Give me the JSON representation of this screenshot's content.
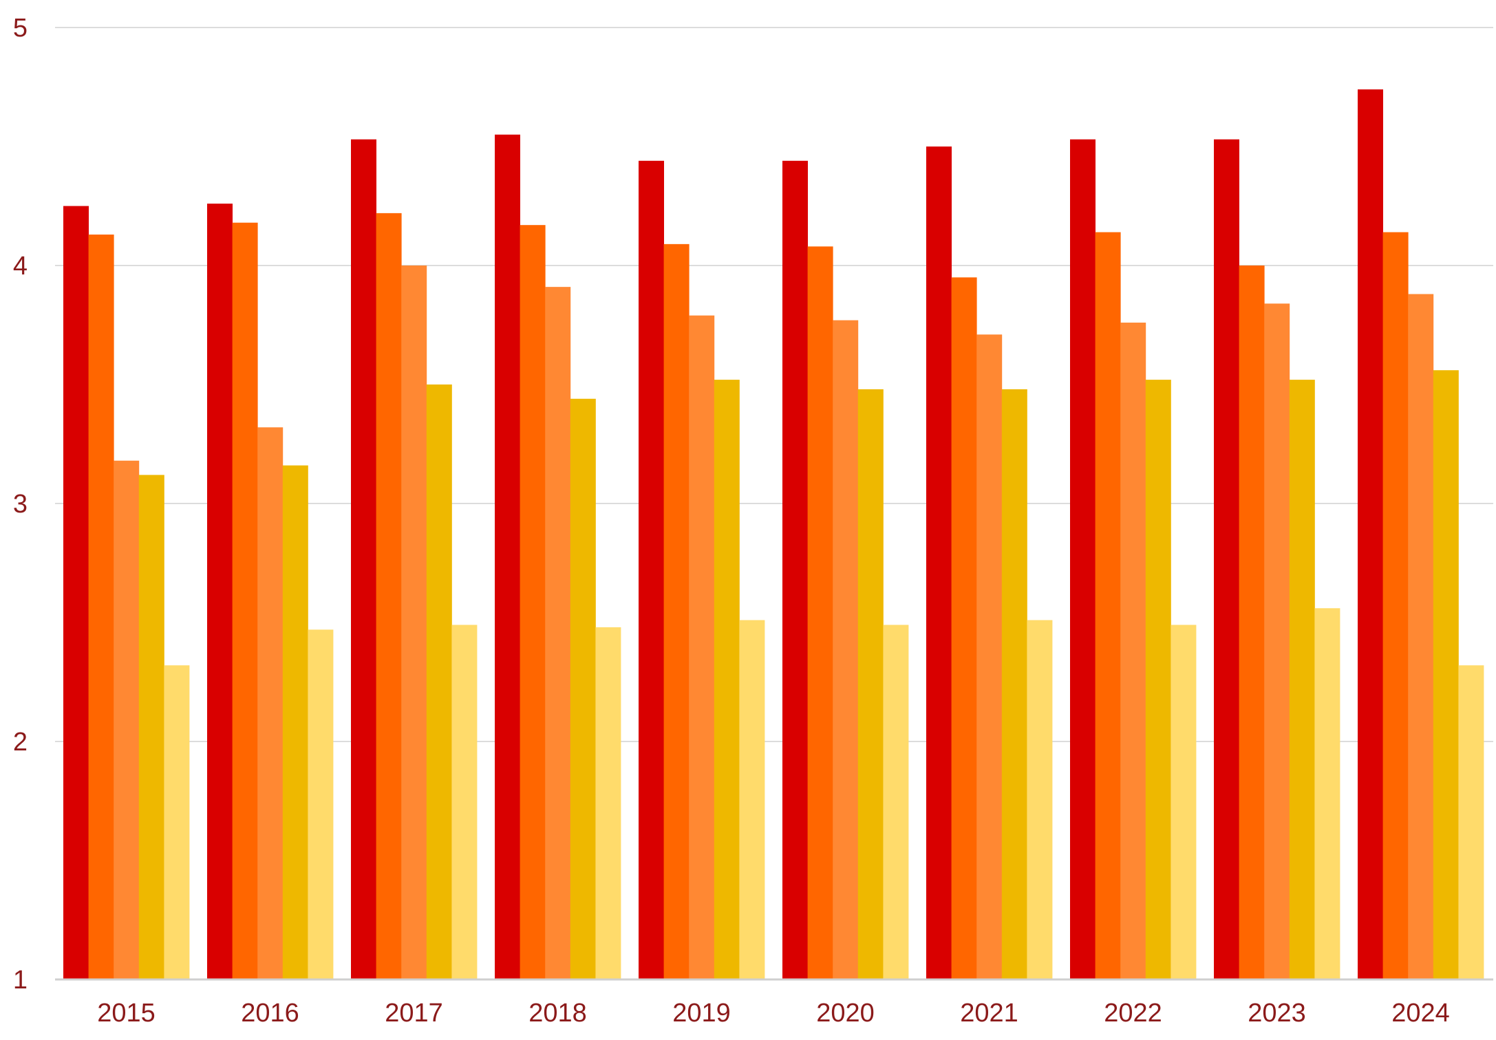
{
  "chart_data": {
    "type": "bar",
    "title": "",
    "xlabel": "",
    "ylabel": "",
    "categories": [
      "2015",
      "2016",
      "2017",
      "2018",
      "2019",
      "2020",
      "2021",
      "2022",
      "2023",
      "2024"
    ],
    "ylim": [
      1,
      5
    ],
    "yticks": [
      1,
      2,
      3,
      4,
      5
    ],
    "grid": true,
    "legend": "none",
    "series": [
      {
        "color": "#d90000",
        "values": [
          4.25,
          4.26,
          4.53,
          4.55,
          4.44,
          4.44,
          4.5,
          4.53,
          4.53,
          4.74
        ]
      },
      {
        "color": "#ff6600",
        "values": [
          4.13,
          4.18,
          4.22,
          4.17,
          4.09,
          4.08,
          3.95,
          4.14,
          4.0,
          4.14
        ]
      },
      {
        "color": "#ff8833",
        "values": [
          3.18,
          3.32,
          4.0,
          3.91,
          3.79,
          3.77,
          3.71,
          3.76,
          3.84,
          3.88
        ]
      },
      {
        "color": "#eeb800",
        "values": [
          3.12,
          3.16,
          3.5,
          3.44,
          3.52,
          3.48,
          3.48,
          3.52,
          3.52,
          3.56
        ]
      },
      {
        "color": "#ffdb6b",
        "values": [
          2.32,
          2.47,
          2.49,
          2.48,
          2.51,
          2.49,
          2.51,
          2.49,
          2.56,
          2.32
        ]
      }
    ]
  }
}
